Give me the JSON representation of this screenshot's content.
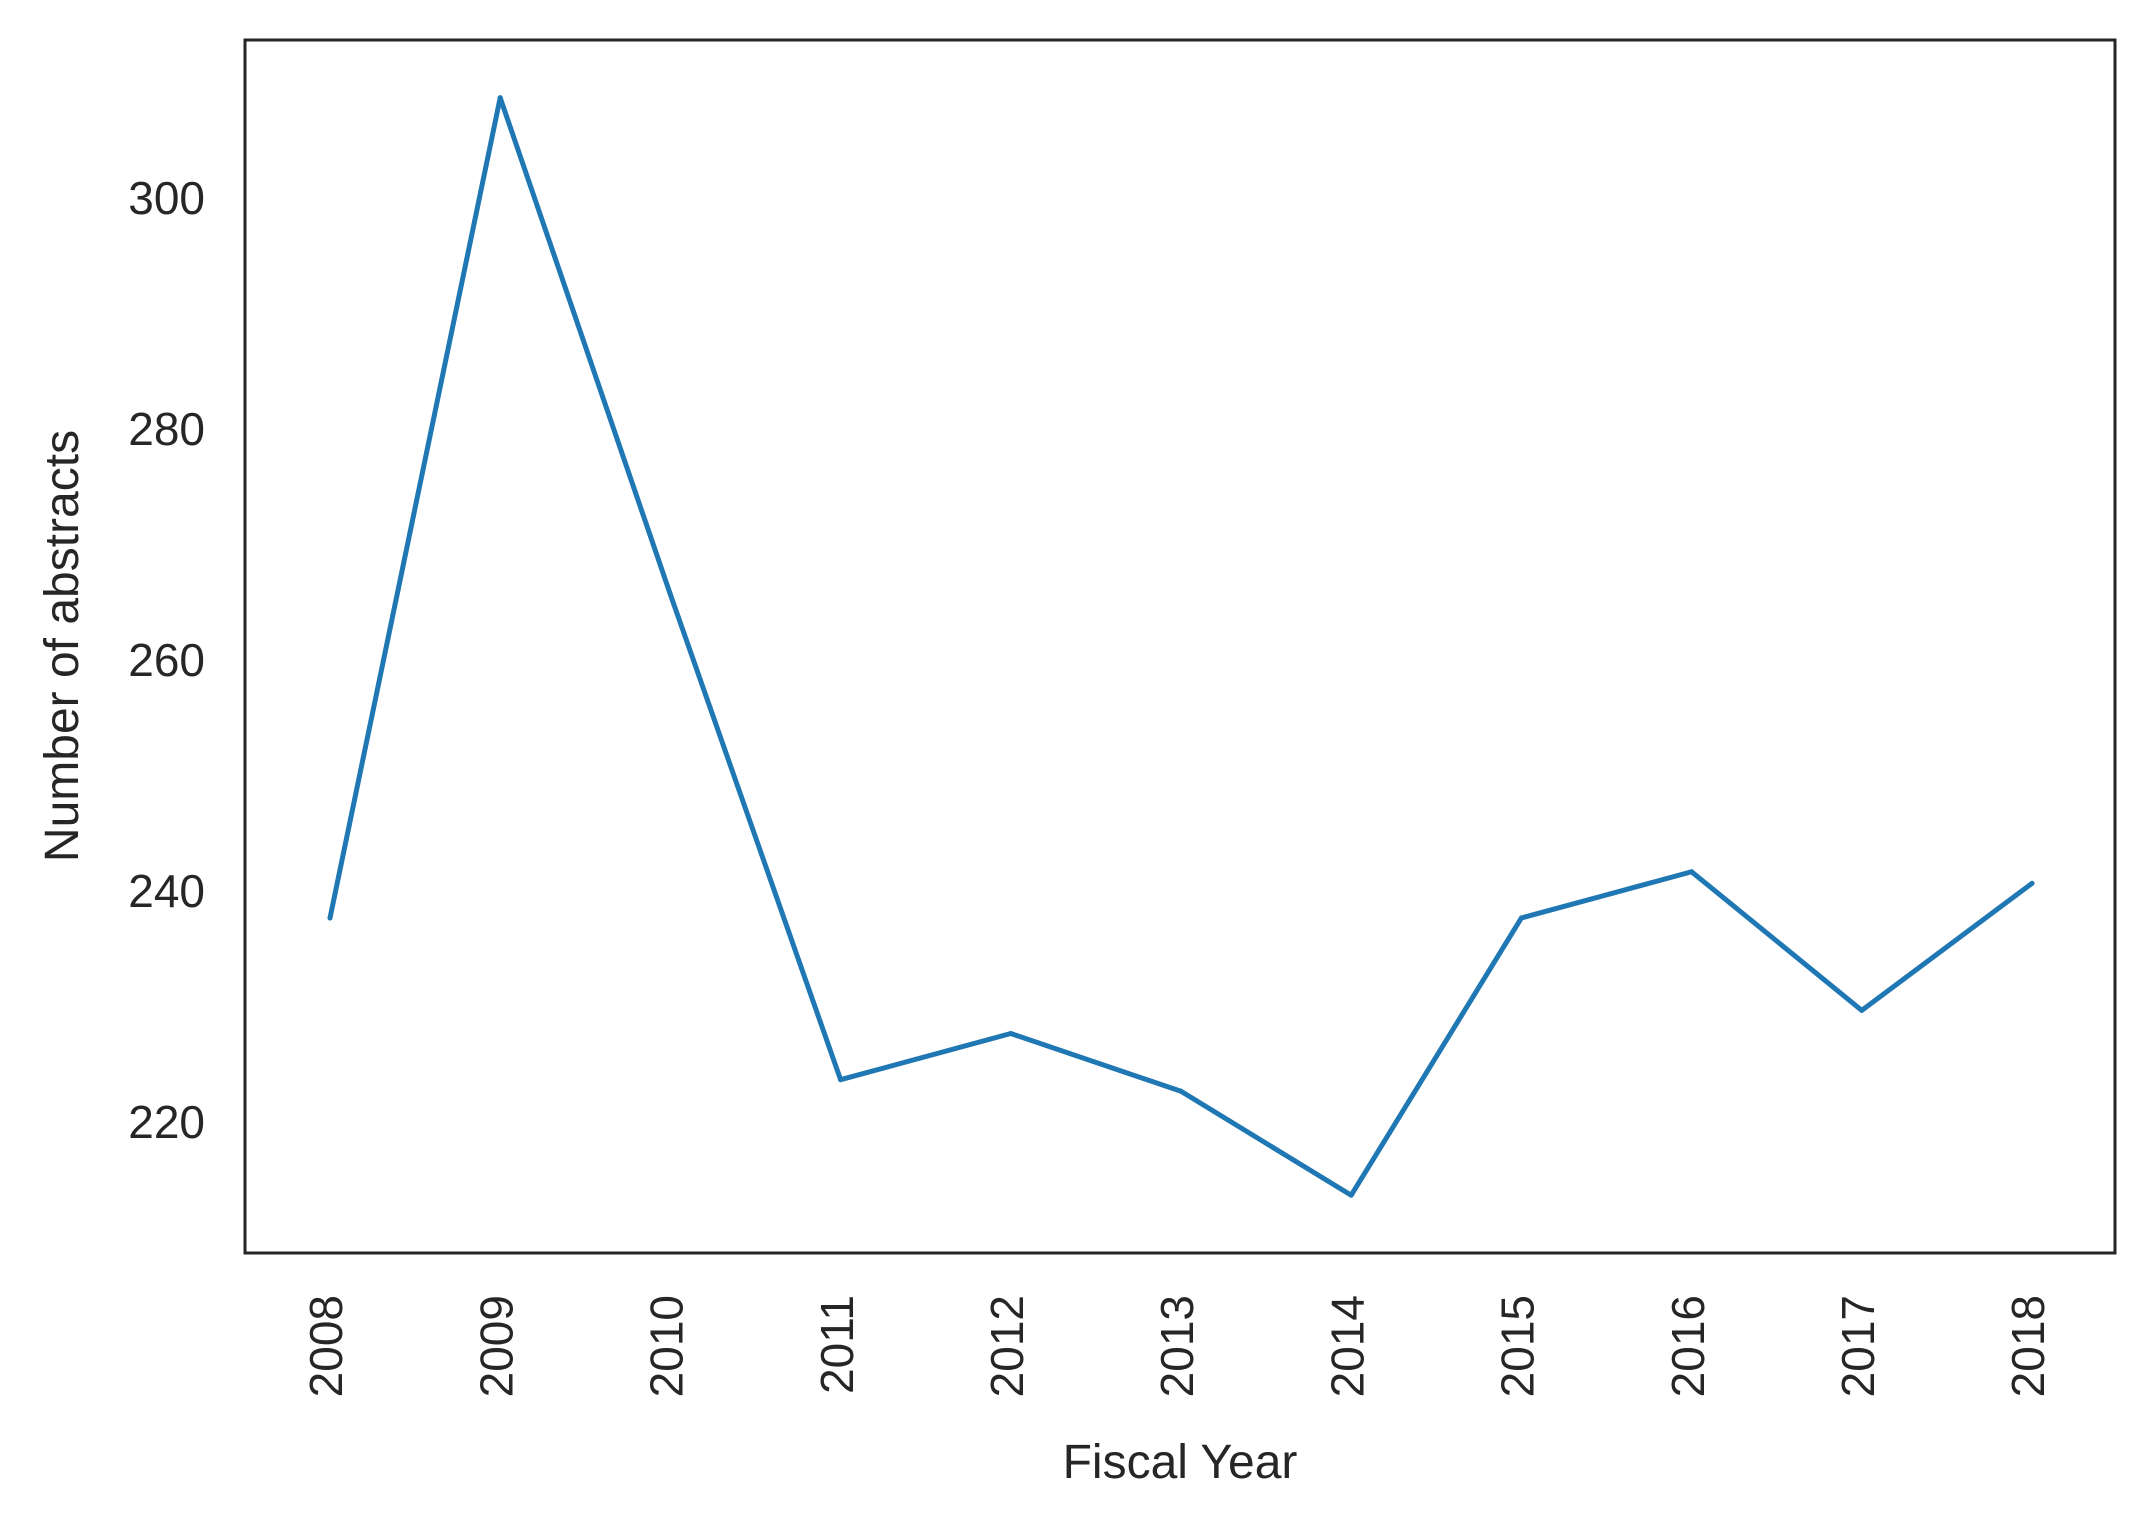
{
  "chart_data": {
    "type": "line",
    "title": "",
    "xlabel": "Fiscal Year",
    "ylabel": "Number of abstracts",
    "x": [
      "2008",
      "2009",
      "2010",
      "2011",
      "2012",
      "2013",
      "2014",
      "2015",
      "2016",
      "2017",
      "2018"
    ],
    "series": [
      {
        "color": "#1f77b4",
        "values": [
          238,
          309,
          266,
          224,
          228,
          223,
          214,
          238,
          242,
          230,
          241
        ]
      }
    ],
    "yticks": [
      220,
      240,
      260,
      280,
      300
    ],
    "ylim": [
      209,
      314
    ],
    "grid": false,
    "legend": "none"
  }
}
